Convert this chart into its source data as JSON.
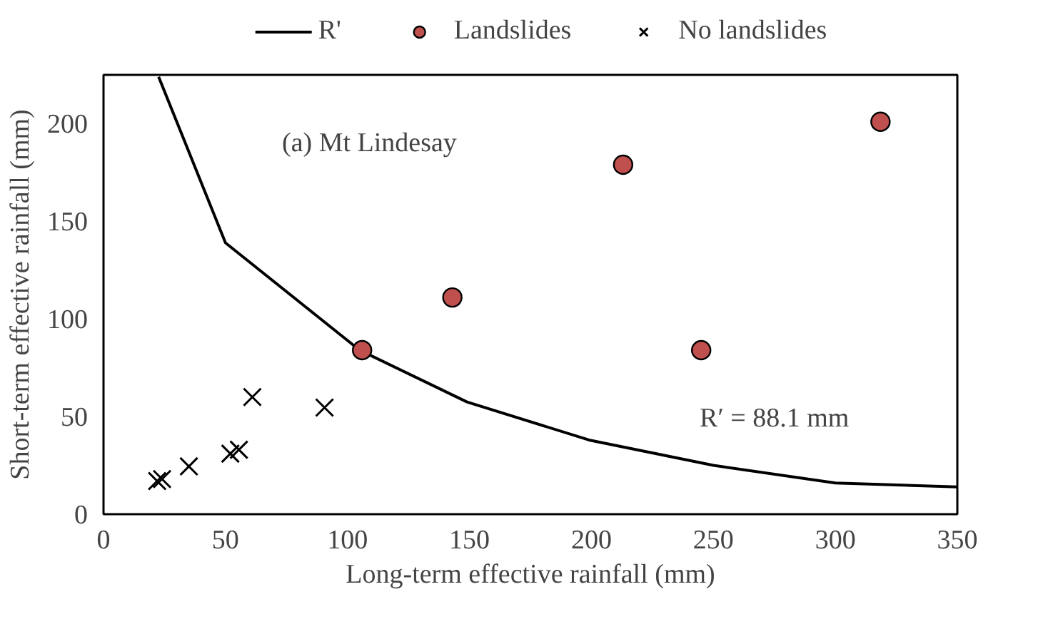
{
  "chart_data": {
    "type": "scatter",
    "xlabel": "Long-term effective rainfall (mm)",
    "ylabel": "Short-term effective rainfall (mm)",
    "annotations": [
      "(a) Mt Lindesay",
      "R′ = 88.1 mm"
    ],
    "xlim": [
      0,
      350
    ],
    "xticks": [
      0,
      50,
      100,
      150,
      200,
      250,
      300,
      350
    ],
    "ylim": [
      0,
      225
    ],
    "yticks": [
      0,
      50,
      100,
      150,
      200
    ],
    "grid": false,
    "legend": "top",
    "series": [
      {
        "name": "R'",
        "type": "line",
        "color": "#000000",
        "marker": "none",
        "line_style": "solid",
        "x": [
          22.6,
          50,
          105,
          149,
          199,
          250,
          300,
          350
        ],
        "values": [
          224,
          139,
          84,
          57.5,
          38,
          25,
          16,
          14
        ]
      },
      {
        "name": "Landslides",
        "color": "#c0504d",
        "marker": "circle",
        "x": [
          106,
          143,
          213,
          245,
          318.5
        ],
        "values": [
          84,
          111,
          179,
          84,
          201
        ]
      },
      {
        "name": "No landslides",
        "color": "#000000",
        "marker": "cross",
        "x": [
          22,
          24,
          35,
          52,
          55.5,
          61,
          90.6
        ],
        "values": [
          17,
          18,
          24.5,
          31,
          33,
          60,
          54.6
        ]
      }
    ]
  }
}
